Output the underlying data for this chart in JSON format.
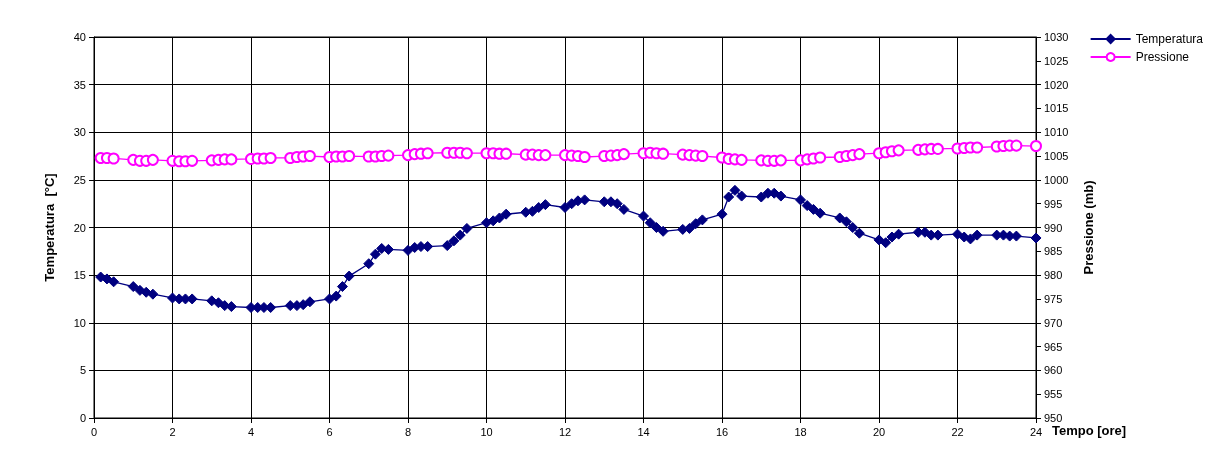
{
  "chart_data": {
    "type": "line",
    "xlabel": "Tempo [ore]",
    "ylabel": "Temperatura  [°C]",
    "y2label": "Pressione (mb)",
    "x": [
      0.17,
      0.33,
      0.5,
      1,
      1.17,
      1.33,
      1.5,
      2,
      2.17,
      2.33,
      2.5,
      3,
      3.17,
      3.33,
      3.5,
      4,
      4.17,
      4.33,
      4.5,
      5,
      5.17,
      5.33,
      5.5,
      6,
      6.17,
      6.33,
      6.5,
      7,
      7.17,
      7.33,
      7.5,
      8,
      8.17,
      8.33,
      8.5,
      9,
      9.17,
      9.33,
      9.5,
      10,
      10.17,
      10.33,
      10.5,
      11,
      11.17,
      11.33,
      11.5,
      12,
      12.17,
      12.33,
      12.5,
      13,
      13.17,
      13.33,
      13.5,
      14,
      14.17,
      14.33,
      14.5,
      15,
      15.17,
      15.33,
      15.5,
      16,
      16.17,
      16.33,
      16.5,
      17,
      17.17,
      17.33,
      17.5,
      18,
      18.17,
      18.33,
      18.5,
      19,
      19.17,
      19.33,
      19.5,
      20,
      20.17,
      20.33,
      20.5,
      21,
      21.17,
      21.33,
      21.5,
      22,
      22.17,
      22.33,
      22.5,
      23,
      23.17,
      23.33,
      23.5,
      24
    ],
    "series": [
      {
        "name": "Temperatura",
        "color": "#000080",
        "marker": "diamond",
        "values": [
          14.8,
          14.6,
          14.3,
          13.8,
          13.4,
          13.2,
          13.0,
          12.6,
          12.5,
          12.5,
          12.5,
          12.3,
          12.1,
          11.8,
          11.7,
          11.6,
          11.6,
          11.6,
          11.6,
          11.8,
          11.8,
          11.9,
          12.2,
          12.5,
          12.8,
          13.8,
          14.9,
          16.2,
          17.2,
          17.8,
          17.7,
          17.6,
          17.9,
          18.0,
          18.0,
          18.1,
          18.6,
          19.2,
          19.9,
          20.5,
          20.7,
          21.0,
          21.4,
          21.6,
          21.7,
          22.1,
          22.4,
          22.1,
          22.5,
          22.8,
          22.9,
          22.7,
          22.7,
          22.5,
          21.9,
          21.2,
          20.5,
          20.0,
          19.6,
          19.8,
          19.9,
          20.4,
          20.8,
          21.4,
          23.2,
          23.9,
          23.3,
          23.2,
          23.6,
          23.6,
          23.3,
          22.9,
          22.3,
          21.9,
          21.5,
          21.0,
          20.6,
          20.0,
          19.4,
          18.7,
          18.4,
          19.0,
          19.3,
          19.5,
          19.5,
          19.2,
          19.2,
          19.3,
          19.0,
          18.8,
          19.2,
          19.2,
          19.2,
          19.1,
          19.1,
          18.9
        ]
      },
      {
        "name": "Pressione",
        "color": "#ff00ff",
        "marker": "circle",
        "axis": "y2",
        "values": [
          1004.6,
          1004.6,
          1004.5,
          1004.2,
          1004.0,
          1004.0,
          1004.2,
          1004.0,
          1003.9,
          1003.9,
          1004.0,
          1004.1,
          1004.2,
          1004.3,
          1004.3,
          1004.4,
          1004.5,
          1004.5,
          1004.6,
          1004.6,
          1004.8,
          1004.9,
          1005.0,
          1004.8,
          1004.9,
          1004.9,
          1005.0,
          1004.9,
          1004.9,
          1005.0,
          1005.1,
          1005.2,
          1005.4,
          1005.5,
          1005.6,
          1005.7,
          1005.7,
          1005.7,
          1005.6,
          1005.6,
          1005.6,
          1005.5,
          1005.5,
          1005.3,
          1005.3,
          1005.2,
          1005.2,
          1005.2,
          1005.1,
          1005.0,
          1004.8,
          1005.0,
          1005.1,
          1005.2,
          1005.4,
          1005.6,
          1005.7,
          1005.6,
          1005.5,
          1005.3,
          1005.2,
          1005.1,
          1005.0,
          1004.7,
          1004.4,
          1004.3,
          1004.2,
          1004.1,
          1004.0,
          1004.0,
          1004.1,
          1004.1,
          1004.3,
          1004.5,
          1004.7,
          1004.8,
          1005.0,
          1005.2,
          1005.4,
          1005.6,
          1005.8,
          1006.0,
          1006.2,
          1006.3,
          1006.4,
          1006.5,
          1006.5,
          1006.6,
          1006.7,
          1006.8,
          1006.8,
          1007.0,
          1007.1,
          1007.2,
          1007.2,
          1007.1
        ]
      }
    ],
    "xlim": [
      0,
      24
    ],
    "xticks": [
      0,
      2,
      4,
      6,
      8,
      10,
      12,
      14,
      16,
      18,
      20,
      22,
      24
    ],
    "ylim": [
      0,
      40
    ],
    "yticks": [
      0,
      5,
      10,
      15,
      20,
      25,
      30,
      35,
      40
    ],
    "y2lim": [
      950,
      1030
    ],
    "y2ticks": [
      950,
      955,
      960,
      965,
      970,
      975,
      980,
      985,
      990,
      995,
      1000,
      1005,
      1010,
      1015,
      1020,
      1025,
      1030
    ],
    "grid": true,
    "legend": "top right"
  }
}
